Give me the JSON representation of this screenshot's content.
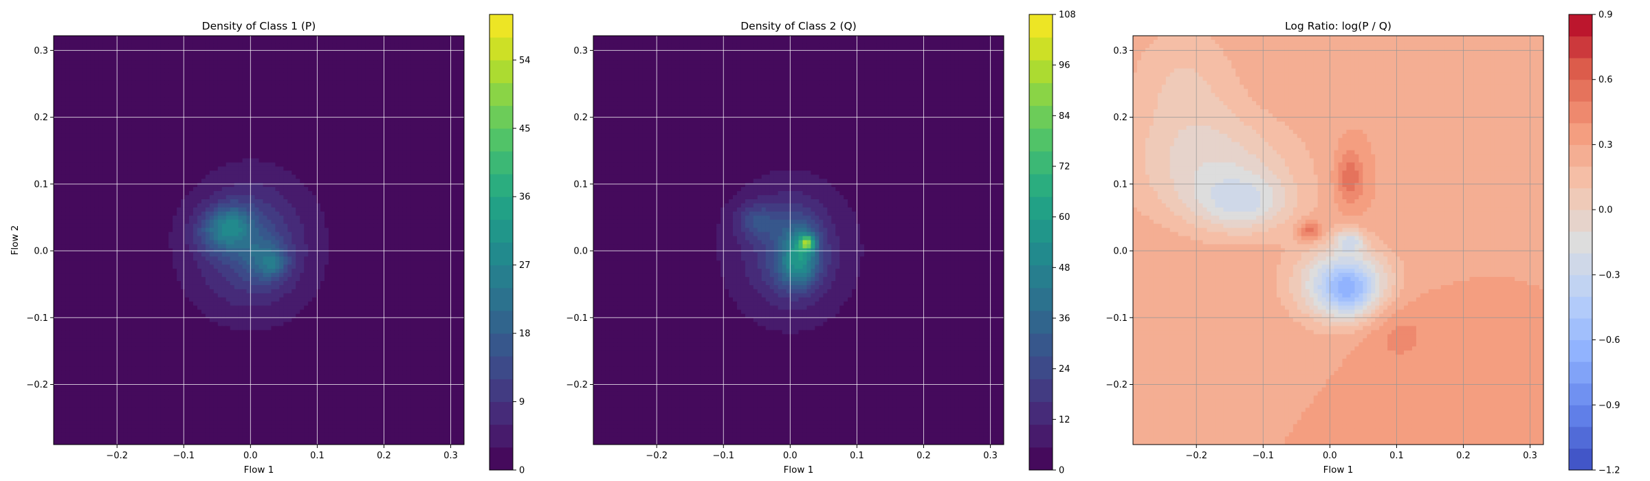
{
  "chart_data": [
    {
      "type": "heatmap",
      "title": "Density of Class 1 (P)",
      "xlabel": "Flow 1",
      "ylabel": "Flow 2",
      "xlim": [
        -0.295,
        0.32
      ],
      "ylim": [
        -0.29,
        0.322
      ],
      "xticks": [
        -0.2,
        -0.1,
        0.0,
        0.1,
        0.2,
        0.3
      ],
      "xtick_labels": [
        "−0.2",
        "−0.1",
        "0.0",
        "0.1",
        "0.2",
        "0.3"
      ],
      "yticks": [
        -0.2,
        -0.1,
        0.0,
        0.1,
        0.2,
        0.3
      ],
      "ytick_labels": [
        "−0.2",
        "−0.1",
        "0.0",
        "0.1",
        "0.2",
        "0.3"
      ],
      "grid": true,
      "colormap": "viridis",
      "colorbar": {
        "min": 0,
        "max": 60,
        "ticks": [
          0,
          9,
          18,
          27,
          36,
          45,
          54
        ],
        "tick_labels": [
          "0",
          "9",
          "18",
          "27",
          "36",
          "45",
          "54"
        ]
      },
      "background_value": 0.5,
      "blobs": [
        {
          "x": 0.0,
          "y": 0.005,
          "sx": 0.085,
          "sy": 0.085,
          "amp": 5
        },
        {
          "x": 0.0,
          "y": 0.01,
          "sx": 0.05,
          "sy": 0.06,
          "amp": 9
        },
        {
          "x": -0.04,
          "y": 0.03,
          "sx": 0.028,
          "sy": 0.022,
          "amp": 14
        },
        {
          "x": -0.025,
          "y": 0.045,
          "sx": 0.02,
          "sy": 0.02,
          "amp": 6
        },
        {
          "x": 0.025,
          "y": -0.015,
          "sx": 0.022,
          "sy": 0.022,
          "amp": 10
        },
        {
          "x": 0.035,
          "y": -0.02,
          "sx": 0.012,
          "sy": 0.012,
          "amp": 5
        }
      ]
    },
    {
      "type": "heatmap",
      "title": "Density of Class 2 (Q)",
      "xlabel": "Flow 1",
      "ylabel": "",
      "xlim": [
        -0.295,
        0.32
      ],
      "ylim": [
        -0.29,
        0.322
      ],
      "xticks": [
        -0.2,
        -0.1,
        0.0,
        0.1,
        0.2,
        0.3
      ],
      "xtick_labels": [
        "−0.2",
        "−0.1",
        "0.0",
        "0.1",
        "0.2",
        "0.3"
      ],
      "yticks": [
        -0.2,
        -0.1,
        0.0,
        0.1,
        0.2,
        0.3
      ],
      "ytick_labels": [
        "−0.2",
        "−0.1",
        "0.0",
        "0.1",
        "0.2",
        "0.3"
      ],
      "grid": true,
      "colormap": "viridis",
      "colorbar": {
        "min": 0,
        "max": 108,
        "ticks": [
          0,
          12,
          24,
          36,
          48,
          60,
          72,
          84,
          96,
          108
        ],
        "tick_labels": [
          "0",
          "12",
          "24",
          "36",
          "48",
          "60",
          "72",
          "84",
          "96",
          "108"
        ]
      },
      "background_value": 2,
      "blobs": [
        {
          "x": 0.0,
          "y": 0.0,
          "sx": 0.075,
          "sy": 0.075,
          "amp": 8
        },
        {
          "x": 0.0,
          "y": 0.0,
          "sx": 0.042,
          "sy": 0.055,
          "amp": 16
        },
        {
          "x": -0.05,
          "y": 0.045,
          "sx": 0.022,
          "sy": 0.018,
          "amp": 16
        },
        {
          "x": 0.015,
          "y": 0.0,
          "sx": 0.02,
          "sy": 0.03,
          "amp": 28
        },
        {
          "x": 0.025,
          "y": 0.012,
          "sx": 0.008,
          "sy": 0.008,
          "amp": 48
        },
        {
          "x": 0.01,
          "y": -0.03,
          "sx": 0.02,
          "sy": 0.02,
          "amp": 14
        }
      ]
    },
    {
      "type": "heatmap",
      "title": "Log Ratio: log(P / Q)",
      "xlabel": "Flow 1",
      "ylabel": "",
      "xlim": [
        -0.295,
        0.32
      ],
      "ylim": [
        -0.29,
        0.322
      ],
      "xticks": [
        -0.2,
        -0.1,
        0.0,
        0.1,
        0.2,
        0.3
      ],
      "xtick_labels": [
        "−0.2",
        "−0.1",
        "0.0",
        "0.1",
        "0.2",
        "0.3"
      ],
      "yticks": [
        -0.2,
        -0.1,
        0.0,
        0.1,
        0.2,
        0.3
      ],
      "ytick_labels": [
        "−0.2",
        "−0.1",
        "0.0",
        "0.1",
        "0.2",
        "0.3"
      ],
      "grid": true,
      "colormap": "coolwarm",
      "colorbar": {
        "min": -1.2,
        "max": 0.9,
        "ticks": [
          -1.2,
          -0.9,
          -0.6,
          -0.3,
          0.0,
          0.3,
          0.6,
          0.9
        ],
        "tick_labels": [
          "−1.2",
          "−0.9",
          "−0.6",
          "−0.3",
          "0.0",
          "0.3",
          "0.6",
          "0.9"
        ]
      },
      "background_value": 0.3,
      "blobs": [
        {
          "x": -0.17,
          "y": 0.12,
          "sx": 0.09,
          "sy": 0.06,
          "amp": -0.35
        },
        {
          "x": -0.13,
          "y": 0.07,
          "sx": 0.05,
          "sy": 0.03,
          "amp": -0.35
        },
        {
          "x": 0.02,
          "y": -0.05,
          "sx": 0.05,
          "sy": 0.04,
          "amp": -0.7
        },
        {
          "x": 0.03,
          "y": -0.06,
          "sx": 0.025,
          "sy": 0.025,
          "amp": -0.3
        },
        {
          "x": 0.03,
          "y": 0.015,
          "sx": 0.015,
          "sy": 0.012,
          "amp": -0.4
        },
        {
          "x": -0.03,
          "y": 0.03,
          "sx": 0.012,
          "sy": 0.01,
          "amp": 0.35
        },
        {
          "x": 0.03,
          "y": 0.11,
          "sx": 0.015,
          "sy": 0.03,
          "amp": 0.3
        },
        {
          "x": -0.22,
          "y": 0.25,
          "sx": 0.06,
          "sy": 0.07,
          "amp": -0.2
        },
        {
          "x": 0.1,
          "y": -0.12,
          "sx": 0.04,
          "sy": 0.04,
          "amp": 0.15
        }
      ]
    }
  ]
}
